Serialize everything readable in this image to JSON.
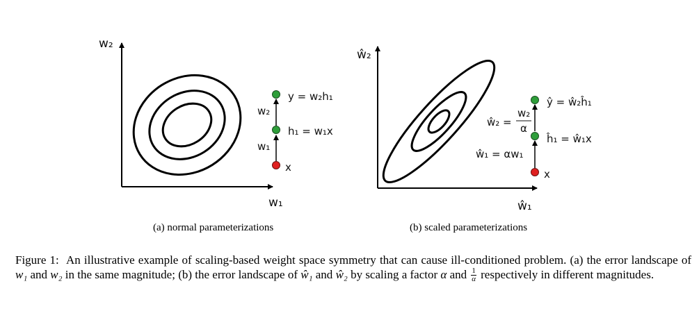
{
  "panel_a": {
    "x_axis_label": "w₁",
    "y_axis_label": "w₂",
    "node_y_label": "y = w₂h₁",
    "node_h_label": "h₁ = w₁x",
    "node_x_label": "x",
    "edge_upper_label": "w₂",
    "edge_lower_label": "w₁",
    "subcaption": "(a) normal parameterizations"
  },
  "panel_b": {
    "x_axis_label": "ŵ₁",
    "y_axis_label": "ŵ₂",
    "node_y_label": "ŷ = ŵ₂ĥ₁",
    "node_h_label": "ĥ₁ = ŵ₁x",
    "node_x_label": "x",
    "edge_upper_label_lhs": "ŵ₂ =",
    "edge_upper_frac_num": "w₂",
    "edge_upper_frac_den": "α",
    "edge_lower_label": "ŵ₁ = αw₁",
    "subcaption": "(b) scaled parameterizations"
  },
  "caption": {
    "prefix": "Figure 1:",
    "part1": "An illustrative example of scaling-based weight space symmetry that can cause ill-conditioned problem. (a) the error landscape of",
    "w1": "w₁",
    "and1": "and",
    "w2": "w₂",
    "part2": "in the same magnitude; (b) the error landscape of",
    "w1hat": "ŵ₁",
    "and2": "and",
    "w2hat": "ŵ₂",
    "part3": "by scaling a factor",
    "alpha": "α",
    "and3": "and",
    "frac_num": "1",
    "frac_den": "α",
    "part4": "respectively in different magnitudes."
  },
  "colors": {
    "node_green": "#2e9e3a",
    "node_red": "#e02020",
    "stroke": "#000000"
  }
}
